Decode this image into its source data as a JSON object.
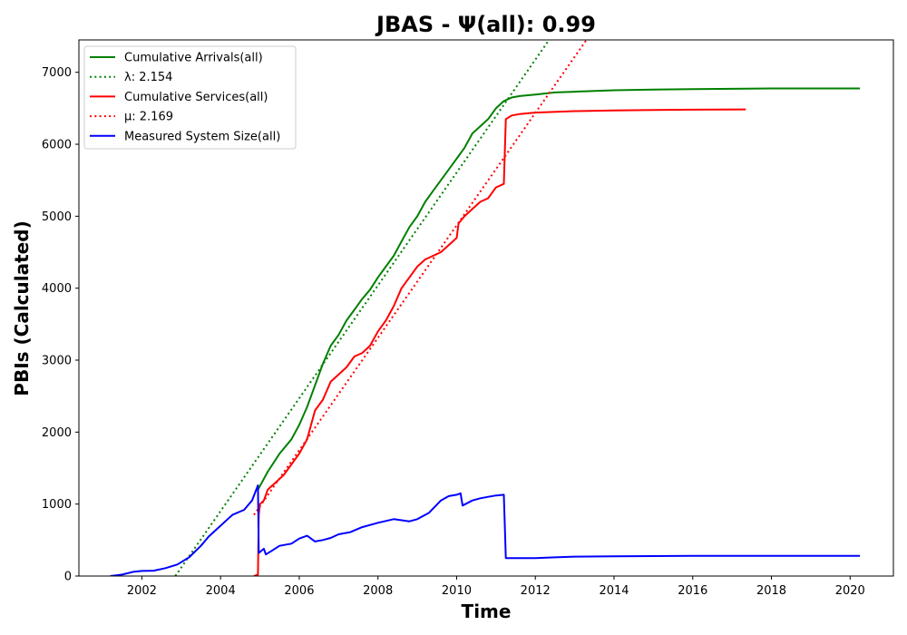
{
  "chart_data": {
    "type": "line",
    "title": "JBAS -  Ψ(all): 0.99",
    "xlabel": "Time",
    "ylabel": "PBIs (Calculated)",
    "xlim": [
      2000.4,
      2021.1
    ],
    "ylim": [
      0,
      7450
    ],
    "x_ticks": [
      2002,
      2004,
      2006,
      2008,
      2010,
      2012,
      2014,
      2016,
      2018,
      2020
    ],
    "y_ticks": [
      0,
      1000,
      2000,
      3000,
      4000,
      5000,
      6000,
      7000
    ],
    "grid": false,
    "legend_position": "top-left",
    "series": [
      {
        "name": "Cumulative Arrivals(all)",
        "color": "#008000",
        "style": "solid",
        "points": [
          [
            2004.95,
            1200
          ],
          [
            2005.2,
            1450
          ],
          [
            2005.5,
            1700
          ],
          [
            2005.8,
            1900
          ],
          [
            2006.0,
            2100
          ],
          [
            2006.2,
            2350
          ],
          [
            2006.4,
            2650
          ],
          [
            2006.6,
            2950
          ],
          [
            2006.8,
            3200
          ],
          [
            2007.0,
            3350
          ],
          [
            2007.2,
            3550
          ],
          [
            2007.4,
            3700
          ],
          [
            2007.6,
            3850
          ],
          [
            2007.8,
            3980
          ],
          [
            2008.0,
            4150
          ],
          [
            2008.2,
            4300
          ],
          [
            2008.4,
            4450
          ],
          [
            2008.6,
            4650
          ],
          [
            2008.8,
            4850
          ],
          [
            2009.0,
            5000
          ],
          [
            2009.2,
            5200
          ],
          [
            2009.4,
            5350
          ],
          [
            2009.6,
            5500
          ],
          [
            2009.8,
            5650
          ],
          [
            2010.0,
            5800
          ],
          [
            2010.2,
            5950
          ],
          [
            2010.4,
            6150
          ],
          [
            2010.6,
            6250
          ],
          [
            2010.8,
            6350
          ],
          [
            2011.0,
            6500
          ],
          [
            2011.2,
            6600
          ],
          [
            2011.4,
            6650
          ],
          [
            2011.6,
            6670
          ],
          [
            2012.0,
            6690
          ],
          [
            2012.5,
            6720
          ],
          [
            2013.0,
            6730
          ],
          [
            2014.0,
            6750
          ],
          [
            2015.0,
            6760
          ],
          [
            2016.0,
            6765
          ],
          [
            2017.0,
            6770
          ],
          [
            2018.0,
            6775
          ],
          [
            2019.0,
            6775
          ],
          [
            2020.25,
            6775
          ]
        ]
      },
      {
        "name": "λ: 2.154",
        "color": "#008000",
        "style": "dotted",
        "points": [
          [
            2002.85,
            0
          ],
          [
            2012.35,
            7450
          ]
        ]
      },
      {
        "name": "Cumulative Services(all)",
        "color": "#ff0000",
        "style": "solid",
        "points": [
          [
            2004.85,
            0
          ],
          [
            2004.95,
            20
          ],
          [
            2004.97,
            850
          ],
          [
            2005.0,
            1000
          ],
          [
            2005.1,
            1050
          ],
          [
            2005.2,
            1200
          ],
          [
            2005.4,
            1300
          ],
          [
            2005.6,
            1400
          ],
          [
            2005.8,
            1550
          ],
          [
            2006.0,
            1700
          ],
          [
            2006.2,
            1900
          ],
          [
            2006.4,
            2300
          ],
          [
            2006.6,
            2450
          ],
          [
            2006.8,
            2700
          ],
          [
            2007.0,
            2800
          ],
          [
            2007.2,
            2900
          ],
          [
            2007.4,
            3050
          ],
          [
            2007.6,
            3100
          ],
          [
            2007.8,
            3200
          ],
          [
            2008.0,
            3400
          ],
          [
            2008.2,
            3550
          ],
          [
            2008.4,
            3750
          ],
          [
            2008.6,
            4000
          ],
          [
            2008.8,
            4150
          ],
          [
            2009.0,
            4300
          ],
          [
            2009.2,
            4400
          ],
          [
            2009.4,
            4450
          ],
          [
            2009.6,
            4500
          ],
          [
            2009.8,
            4600
          ],
          [
            2010.0,
            4700
          ],
          [
            2010.05,
            4900
          ],
          [
            2010.2,
            5000
          ],
          [
            2010.4,
            5100
          ],
          [
            2010.6,
            5200
          ],
          [
            2010.8,
            5250
          ],
          [
            2011.0,
            5400
          ],
          [
            2011.2,
            5450
          ],
          [
            2011.25,
            6350
          ],
          [
            2011.4,
            6400
          ],
          [
            2011.6,
            6420
          ],
          [
            2012.0,
            6440
          ],
          [
            2013.0,
            6460
          ],
          [
            2014.0,
            6470
          ],
          [
            2015.0,
            6475
          ],
          [
            2016.0,
            6480
          ],
          [
            2017.35,
            6485
          ]
        ]
      },
      {
        "name": "μ: 2.169",
        "color": "#ff0000",
        "style": "dotted",
        "points": [
          [
            2004.85,
            850
          ],
          [
            2013.3,
            7450
          ]
        ]
      },
      {
        "name": "Measured System Size(all)",
        "color": "#0000ff",
        "style": "solid",
        "points": [
          [
            2001.2,
            0
          ],
          [
            2001.5,
            20
          ],
          [
            2001.8,
            60
          ],
          [
            2002.0,
            70
          ],
          [
            2002.3,
            75
          ],
          [
            2002.6,
            110
          ],
          [
            2002.9,
            160
          ],
          [
            2003.2,
            260
          ],
          [
            2003.5,
            420
          ],
          [
            2003.7,
            550
          ],
          [
            2004.0,
            700
          ],
          [
            2004.3,
            850
          ],
          [
            2004.6,
            920
          ],
          [
            2004.8,
            1050
          ],
          [
            2004.95,
            1260
          ],
          [
            2004.97,
            320
          ],
          [
            2005.1,
            380
          ],
          [
            2005.15,
            300
          ],
          [
            2005.3,
            350
          ],
          [
            2005.5,
            420
          ],
          [
            2005.8,
            450
          ],
          [
            2006.0,
            520
          ],
          [
            2006.2,
            560
          ],
          [
            2006.4,
            480
          ],
          [
            2006.6,
            500
          ],
          [
            2006.8,
            530
          ],
          [
            2007.0,
            580
          ],
          [
            2007.3,
            610
          ],
          [
            2007.6,
            680
          ],
          [
            2008.0,
            740
          ],
          [
            2008.4,
            790
          ],
          [
            2008.8,
            760
          ],
          [
            2009.0,
            790
          ],
          [
            2009.3,
            880
          ],
          [
            2009.6,
            1050
          ],
          [
            2009.8,
            1110
          ],
          [
            2010.0,
            1130
          ],
          [
            2010.1,
            1150
          ],
          [
            2010.15,
            980
          ],
          [
            2010.4,
            1050
          ],
          [
            2010.6,
            1080
          ],
          [
            2010.8,
            1100
          ],
          [
            2011.0,
            1120
          ],
          [
            2011.2,
            1130
          ],
          [
            2011.25,
            250
          ],
          [
            2011.6,
            250
          ],
          [
            2012.0,
            250
          ],
          [
            2012.5,
            260
          ],
          [
            2013.0,
            270
          ],
          [
            2014.0,
            275
          ],
          [
            2016.0,
            280
          ],
          [
            2018.0,
            280
          ],
          [
            2020.25,
            280
          ]
        ]
      }
    ]
  }
}
